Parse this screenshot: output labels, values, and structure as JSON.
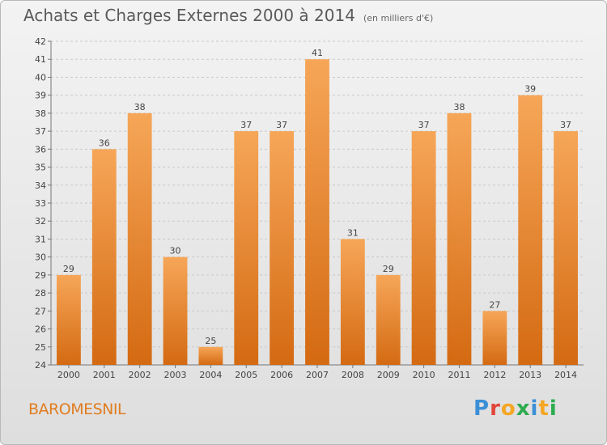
{
  "header": {
    "title": "Achats et Charges Externes 2000 à 2014",
    "subtitle": "(en milliers d'€)"
  },
  "location": "BAROMESNIL",
  "logo": {
    "text": "Proxiti",
    "colors": [
      "#3b8fd6",
      "#e2463b",
      "#f5a623",
      "#2eab4f",
      "#3b8fd6",
      "#f5a623",
      "#2eab4f"
    ]
  },
  "chart_data": {
    "type": "bar",
    "title": "Achats et Charges Externes 2000 à 2014",
    "subtitle": "(en milliers d'€)",
    "categories": [
      "2000",
      "2001",
      "2002",
      "2003",
      "2004",
      "2005",
      "2006",
      "2007",
      "2008",
      "2009",
      "2010",
      "2011",
      "2012",
      "2013",
      "2014"
    ],
    "values": [
      29,
      36,
      38,
      30,
      25,
      37,
      37,
      41,
      31,
      29,
      37,
      38,
      27,
      39,
      37
    ],
    "ylim": [
      24,
      42
    ],
    "yticks": [
      24,
      25,
      26,
      27,
      28,
      29,
      30,
      31,
      32,
      33,
      34,
      35,
      36,
      37,
      38,
      39,
      40,
      41,
      42
    ],
    "grid": true,
    "bar_color": "#f08a2c"
  }
}
